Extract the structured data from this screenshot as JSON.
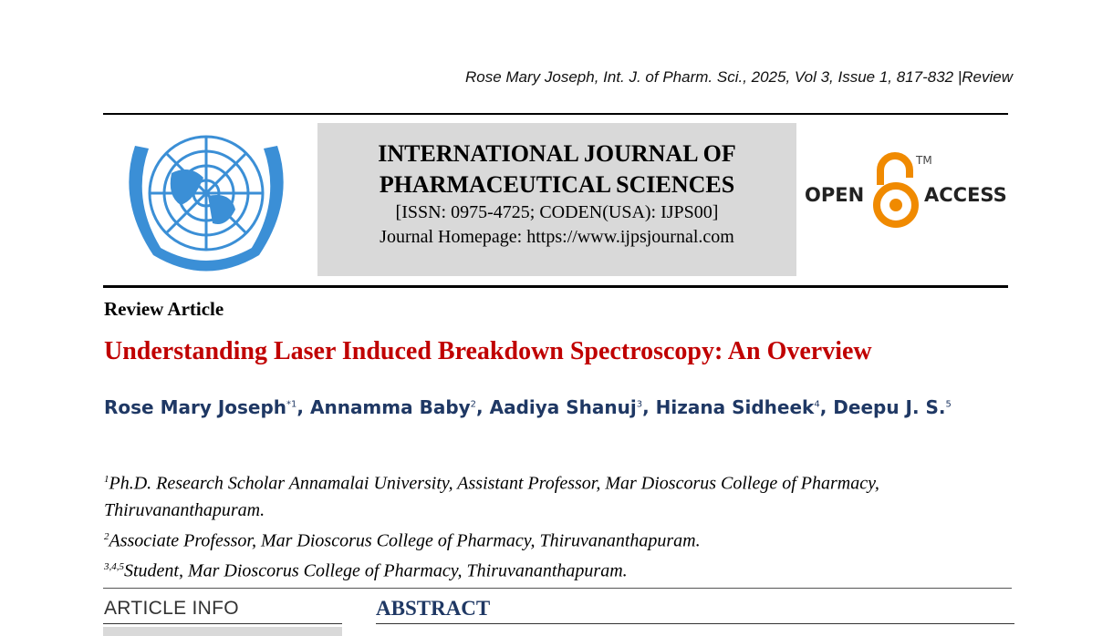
{
  "header": {
    "citation": "Rose Mary Joseph, Int. J. of Pharm. Sci., 2025, Vol 3, Issue 1, 817-832 |Review"
  },
  "journal": {
    "name_line1": "INTERNATIONAL JOURNAL OF",
    "name_line2": "PHARMACEUTICAL SCIENCES",
    "issn": "[ISSN: 0975-4725; CODEN(USA): IJPS00]",
    "homepage": "Journal Homepage: https://www.ijpsjournal.com",
    "logo_icon": "un-emblem-logo",
    "open_access": {
      "open": "OPEN",
      "access": "ACCESS",
      "tm": "TM",
      "color": "#f08a00"
    }
  },
  "article": {
    "type": "Review Article",
    "title": "Understanding Laser Induced Breakdown Spectroscopy: An Overview",
    "authors": [
      {
        "name": "Rose Mary Joseph",
        "sup": "*1"
      },
      {
        "name": "Annamma Baby",
        "sup": "2"
      },
      {
        "name": "Aadiya Shanuj",
        "sup": "3"
      },
      {
        "name": "Hizana Sidheek",
        "sup": "4"
      },
      {
        "name": "Deepu J. S.",
        "sup": "5"
      }
    ],
    "affiliations": [
      {
        "sup": "1",
        "text": "Ph.D. Research Scholar Annamalai University, Assistant Professor, Mar Dioscorus College of Pharmacy, Thiruvananthapuram."
      },
      {
        "sup": "2",
        "text": "Associate Professor, Mar Dioscorus College of Pharmacy, Thiruvananthapuram."
      },
      {
        "sup": "3,4,5",
        "text": "Student, Mar Dioscorus College of Pharmacy, Thiruvananthapuram."
      }
    ],
    "article_info_heading": "ARTICLE INFO",
    "abstract_heading": "ABSTRACT"
  },
  "colors": {
    "title": "#c00000",
    "authors": "#1f3864",
    "banner_bg": "#d9d9d9"
  }
}
